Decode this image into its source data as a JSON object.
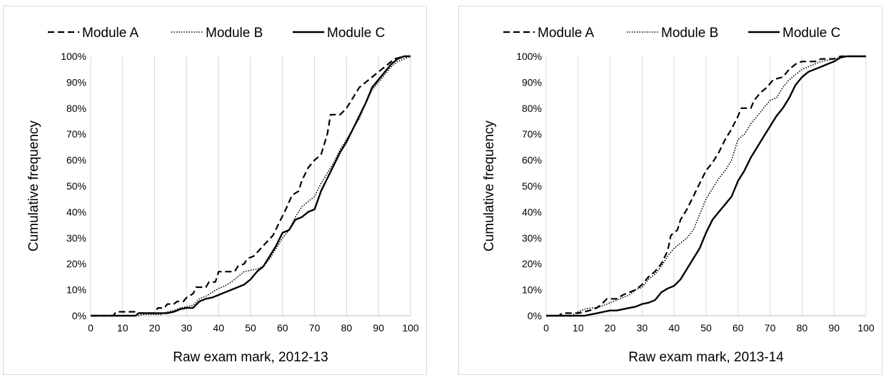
{
  "chart_data": [
    {
      "type": "line",
      "xlabel": "Raw exam mark, 2012-13",
      "ylabel": "Cumulative frequency",
      "xlim": [
        0,
        100
      ],
      "ylim": [
        0,
        100
      ],
      "x_ticks": [
        "0",
        "10",
        "20",
        "30",
        "40",
        "50",
        "60",
        "70",
        "80",
        "90",
        "100"
      ],
      "y_ticks": [
        "0%",
        "10%",
        "20%",
        "30%",
        "40%",
        "50%",
        "60%",
        "70%",
        "80%",
        "90%",
        "100%"
      ],
      "grid": "vertical",
      "legend_position": "top",
      "series": [
        {
          "name": "Module A",
          "style": "dashed",
          "points": [
            [
              0,
              0
            ],
            [
              7,
              0
            ],
            [
              8,
              1.5
            ],
            [
              14,
              1.5
            ],
            [
              15,
              1
            ],
            [
              20,
              1
            ],
            [
              21,
              3
            ],
            [
              23,
              3
            ],
            [
              24,
              4.5
            ],
            [
              26,
              4.5
            ],
            [
              27,
              5.5
            ],
            [
              29,
              5.5
            ],
            [
              30,
              7
            ],
            [
              32,
              8.5
            ],
            [
              33,
              11
            ],
            [
              36,
              11
            ],
            [
              37,
              13
            ],
            [
              39,
              13
            ],
            [
              40,
              17
            ],
            [
              45,
              17
            ],
            [
              46,
              19
            ],
            [
              48,
              20
            ],
            [
              49,
              22
            ],
            [
              51,
              23
            ],
            [
              54,
              27
            ],
            [
              57,
              31
            ],
            [
              59,
              36
            ],
            [
              61,
              41
            ],
            [
              63,
              46.5
            ],
            [
              65,
              48
            ],
            [
              66,
              52
            ],
            [
              68,
              57
            ],
            [
              70,
              60
            ],
            [
              72,
              62
            ],
            [
              74,
              70
            ],
            [
              75,
              77.5
            ],
            [
              78,
              77.5
            ],
            [
              80,
              80
            ],
            [
              82,
              84
            ],
            [
              84,
              88
            ],
            [
              86,
              90
            ],
            [
              89,
              93
            ],
            [
              92,
              96
            ],
            [
              95,
              99
            ],
            [
              98,
              100
            ],
            [
              100,
              100
            ]
          ]
        },
        {
          "name": "Module B",
          "style": "dotted",
          "points": [
            [
              0,
              0
            ],
            [
              15,
              0
            ],
            [
              16,
              0.5
            ],
            [
              22,
              0.5
            ],
            [
              24,
              1.5
            ],
            [
              26,
              2
            ],
            [
              28,
              3
            ],
            [
              30,
              3.5
            ],
            [
              32,
              4
            ],
            [
              34,
              6.5
            ],
            [
              36,
              7.5
            ],
            [
              38,
              9
            ],
            [
              40,
              10.5
            ],
            [
              42,
              11.5
            ],
            [
              44,
              13
            ],
            [
              46,
              15
            ],
            [
              48,
              17
            ],
            [
              50,
              17.5
            ],
            [
              52,
              18
            ],
            [
              54,
              19
            ],
            [
              56,
              22
            ],
            [
              58,
              26
            ],
            [
              60,
              30
            ],
            [
              62,
              33
            ],
            [
              64,
              38
            ],
            [
              66,
              42
            ],
            [
              68,
              44
            ],
            [
              70,
              46
            ],
            [
              72,
              51
            ],
            [
              74,
              55
            ],
            [
              76,
              59
            ],
            [
              78,
              64
            ],
            [
              80,
              68
            ],
            [
              82,
              72
            ],
            [
              84,
              76
            ],
            [
              86,
              82
            ],
            [
              88,
              87
            ],
            [
              90,
              90
            ],
            [
              92,
              93
            ],
            [
              94,
              96
            ],
            [
              96,
              98
            ],
            [
              98,
              99
            ],
            [
              100,
              100
            ]
          ]
        },
        {
          "name": "Module C",
          "style": "solid",
          "points": [
            [
              0,
              0
            ],
            [
              14,
              0
            ],
            [
              15,
              1
            ],
            [
              20,
              1
            ],
            [
              24,
              1
            ],
            [
              26,
              1.5
            ],
            [
              28,
              2.5
            ],
            [
              30,
              3
            ],
            [
              32,
              3
            ],
            [
              34,
              5.5
            ],
            [
              36,
              6.5
            ],
            [
              38,
              7
            ],
            [
              40,
              8
            ],
            [
              42,
              9
            ],
            [
              44,
              10
            ],
            [
              46,
              11
            ],
            [
              48,
              12
            ],
            [
              50,
              14
            ],
            [
              52,
              17
            ],
            [
              54,
              19
            ],
            [
              56,
              23
            ],
            [
              58,
              27
            ],
            [
              60,
              32
            ],
            [
              62,
              33
            ],
            [
              64,
              37
            ],
            [
              66,
              38
            ],
            [
              68,
              40
            ],
            [
              70,
              41
            ],
            [
              72,
              48
            ],
            [
              74,
              53
            ],
            [
              76,
              58
            ],
            [
              78,
              63
            ],
            [
              80,
              67
            ],
            [
              82,
              72
            ],
            [
              84,
              77
            ],
            [
              86,
              82
            ],
            [
              88,
              88
            ],
            [
              90,
              91
            ],
            [
              92,
              94
            ],
            [
              94,
              97
            ],
            [
              96,
              99
            ],
            [
              98,
              100
            ],
            [
              100,
              100
            ]
          ]
        }
      ]
    },
    {
      "type": "line",
      "xlabel": "Raw exam mark, 2013-14",
      "ylabel": "Cumulative frequency",
      "xlim": [
        0,
        100
      ],
      "ylim": [
        0,
        100
      ],
      "x_ticks": [
        "0",
        "10",
        "20",
        "30",
        "40",
        "50",
        "60",
        "70",
        "80",
        "90",
        "100"
      ],
      "y_ticks": [
        "0%",
        "10%",
        "20%",
        "30%",
        "40%",
        "50%",
        "60%",
        "70%",
        "80%",
        "90%",
        "100%"
      ],
      "grid": "vertical",
      "legend_position": "top",
      "series": [
        {
          "name": "Module A",
          "style": "dashed",
          "points": [
            [
              0,
              0
            ],
            [
              4,
              0
            ],
            [
              5,
              1
            ],
            [
              10,
              1
            ],
            [
              12,
              1.5
            ],
            [
              15,
              2.5
            ],
            [
              17,
              4
            ],
            [
              19,
              6.5
            ],
            [
              22,
              6.5
            ],
            [
              24,
              8
            ],
            [
              26,
              9
            ],
            [
              28,
              10
            ],
            [
              30,
              12
            ],
            [
              32,
              15
            ],
            [
              34,
              17
            ],
            [
              36,
              20
            ],
            [
              38,
              25
            ],
            [
              39,
              31
            ],
            [
              41,
              33
            ],
            [
              42,
              37
            ],
            [
              44,
              41
            ],
            [
              46,
              46
            ],
            [
              48,
              51
            ],
            [
              50,
              56
            ],
            [
              52,
              59
            ],
            [
              54,
              63
            ],
            [
              56,
              68
            ],
            [
              58,
              72
            ],
            [
              60,
              77
            ],
            [
              61,
              80
            ],
            [
              64,
              80
            ],
            [
              65,
              83
            ],
            [
              67,
              86
            ],
            [
              69,
              88
            ],
            [
              71,
              91
            ],
            [
              74,
              92
            ],
            [
              76,
              95
            ],
            [
              78,
              97
            ],
            [
              80,
              98
            ],
            [
              84,
              98
            ],
            [
              86,
              99
            ],
            [
              90,
              99
            ],
            [
              92,
              100
            ],
            [
              100,
              100
            ]
          ]
        },
        {
          "name": "Module B",
          "style": "dotted",
          "points": [
            [
              0,
              0
            ],
            [
              8,
              0
            ],
            [
              10,
              1.5
            ],
            [
              12,
              2.5
            ],
            [
              14,
              3
            ],
            [
              16,
              3
            ],
            [
              18,
              4
            ],
            [
              20,
              5
            ],
            [
              22,
              6
            ],
            [
              24,
              7
            ],
            [
              26,
              8
            ],
            [
              28,
              10
            ],
            [
              30,
              11
            ],
            [
              32,
              14
            ],
            [
              34,
              16
            ],
            [
              36,
              19
            ],
            [
              38,
              23
            ],
            [
              40,
              26
            ],
            [
              42,
              28
            ],
            [
              44,
              30
            ],
            [
              46,
              33
            ],
            [
              48,
              39
            ],
            [
              50,
              45
            ],
            [
              52,
              49
            ],
            [
              54,
              53
            ],
            [
              56,
              56
            ],
            [
              58,
              60
            ],
            [
              60,
              68
            ],
            [
              62,
              70
            ],
            [
              64,
              74
            ],
            [
              66,
              77
            ],
            [
              68,
              80
            ],
            [
              70,
              83
            ],
            [
              72,
              84
            ],
            [
              74,
              88
            ],
            [
              76,
              91
            ],
            [
              78,
              93
            ],
            [
              80,
              95
            ],
            [
              82,
              96
            ],
            [
              84,
              97
            ],
            [
              86,
              98
            ],
            [
              88,
              98.5
            ],
            [
              90,
              99
            ],
            [
              94,
              100
            ],
            [
              100,
              100
            ]
          ]
        },
        {
          "name": "Module C",
          "style": "solid",
          "points": [
            [
              0,
              0
            ],
            [
              12,
              0
            ],
            [
              14,
              0.5
            ],
            [
              16,
              1
            ],
            [
              18,
              1.5
            ],
            [
              20,
              2
            ],
            [
              22,
              2
            ],
            [
              24,
              2.5
            ],
            [
              26,
              3
            ],
            [
              28,
              3.5
            ],
            [
              30,
              4.5
            ],
            [
              32,
              5
            ],
            [
              34,
              6
            ],
            [
              36,
              9
            ],
            [
              38,
              10.5
            ],
            [
              40,
              11.5
            ],
            [
              42,
              14
            ],
            [
              44,
              18
            ],
            [
              46,
              22
            ],
            [
              48,
              26
            ],
            [
              50,
              32
            ],
            [
              52,
              37
            ],
            [
              54,
              40
            ],
            [
              56,
              43
            ],
            [
              58,
              46
            ],
            [
              60,
              52
            ],
            [
              62,
              56
            ],
            [
              64,
              61
            ],
            [
              66,
              65
            ],
            [
              68,
              69
            ],
            [
              70,
              73
            ],
            [
              72,
              77
            ],
            [
              74,
              80
            ],
            [
              76,
              84
            ],
            [
              78,
              89
            ],
            [
              80,
              92
            ],
            [
              82,
              94
            ],
            [
              84,
              95
            ],
            [
              86,
              96
            ],
            [
              88,
              97
            ],
            [
              90,
              98
            ],
            [
              92,
              99.5
            ],
            [
              94,
              100
            ],
            [
              100,
              100
            ]
          ]
        }
      ]
    }
  ]
}
